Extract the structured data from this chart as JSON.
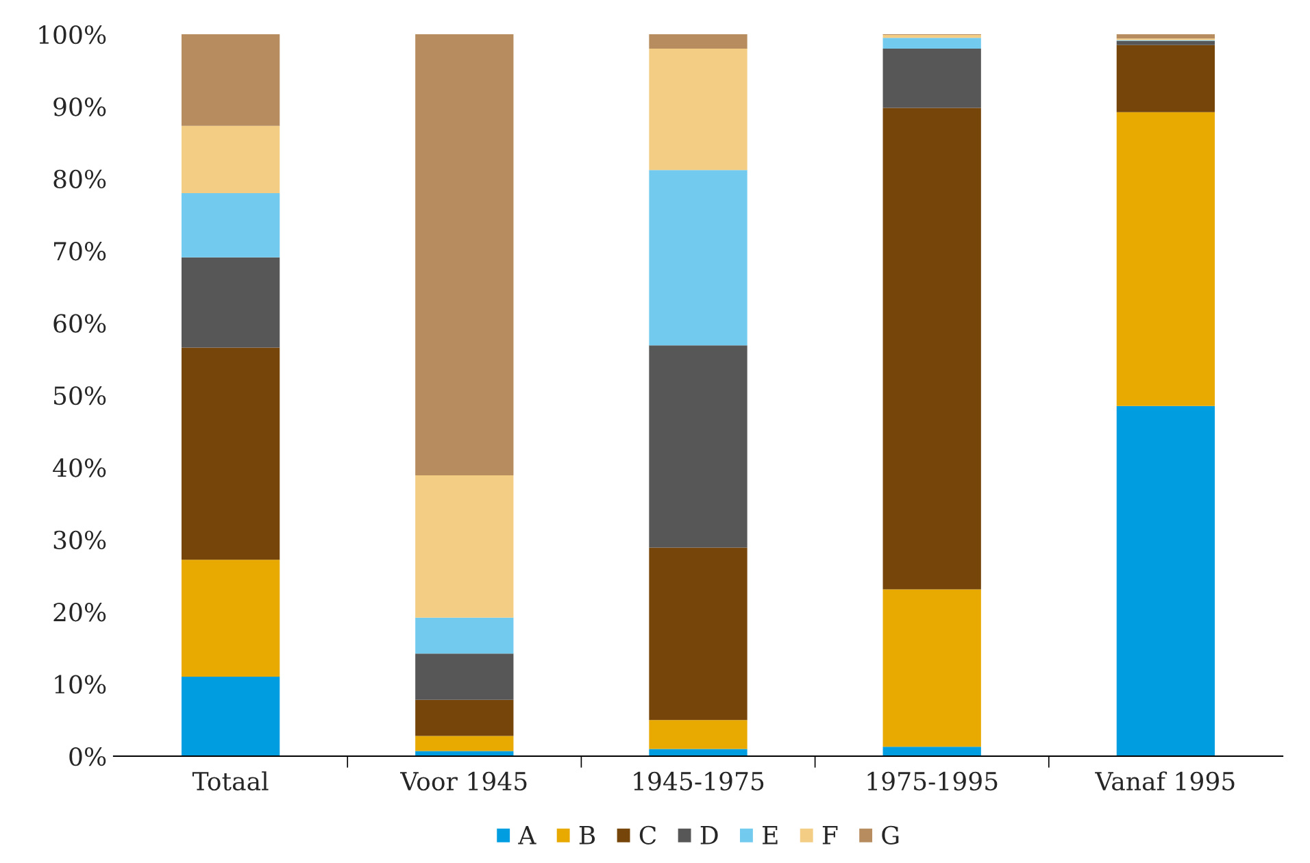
{
  "chart_data": {
    "type": "bar",
    "stacked": true,
    "categories": [
      "Totaal",
      "Voor 1945",
      "1945-1975",
      "1975-1995",
      "Vanaf 1995"
    ],
    "series": [
      {
        "name": "A",
        "color": "#009ee0",
        "values": [
          11.0,
          0.7,
          1.0,
          1.3,
          48.5
        ]
      },
      {
        "name": "B",
        "color": "#e8a900",
        "values": [
          16.2,
          2.1,
          4.0,
          21.8,
          40.7
        ]
      },
      {
        "name": "C",
        "color": "#76450a",
        "values": [
          29.4,
          5.0,
          23.9,
          66.7,
          9.3
        ]
      },
      {
        "name": "D",
        "color": "#575757",
        "values": [
          12.5,
          6.4,
          28.0,
          8.2,
          0.6
        ]
      },
      {
        "name": "E",
        "color": "#73caef",
        "values": [
          8.9,
          5.0,
          24.3,
          1.5,
          0.1
        ]
      },
      {
        "name": "F",
        "color": "#f3cd83",
        "values": [
          9.3,
          19.7,
          16.8,
          0.4,
          0.2
        ]
      },
      {
        "name": "G",
        "color": "#b78d5f",
        "values": [
          12.7,
          61.1,
          2.0,
          0.1,
          0.6
        ]
      }
    ],
    "ylim": [
      0,
      100
    ],
    "yticks": [
      {
        "value": 0,
        "label": "0%"
      },
      {
        "value": 10,
        "label": "10%"
      },
      {
        "value": 20,
        "label": "20%"
      },
      {
        "value": 30,
        "label": "30%"
      },
      {
        "value": 40,
        "label": "40%"
      },
      {
        "value": 50,
        "label": "50%"
      },
      {
        "value": 60,
        "label": "60%"
      },
      {
        "value": 70,
        "label": "70%"
      },
      {
        "value": 80,
        "label": "80%"
      },
      {
        "value": 90,
        "label": "90%"
      },
      {
        "value": 100,
        "label": "100%"
      }
    ],
    "grid": false,
    "legend": "bottom"
  }
}
